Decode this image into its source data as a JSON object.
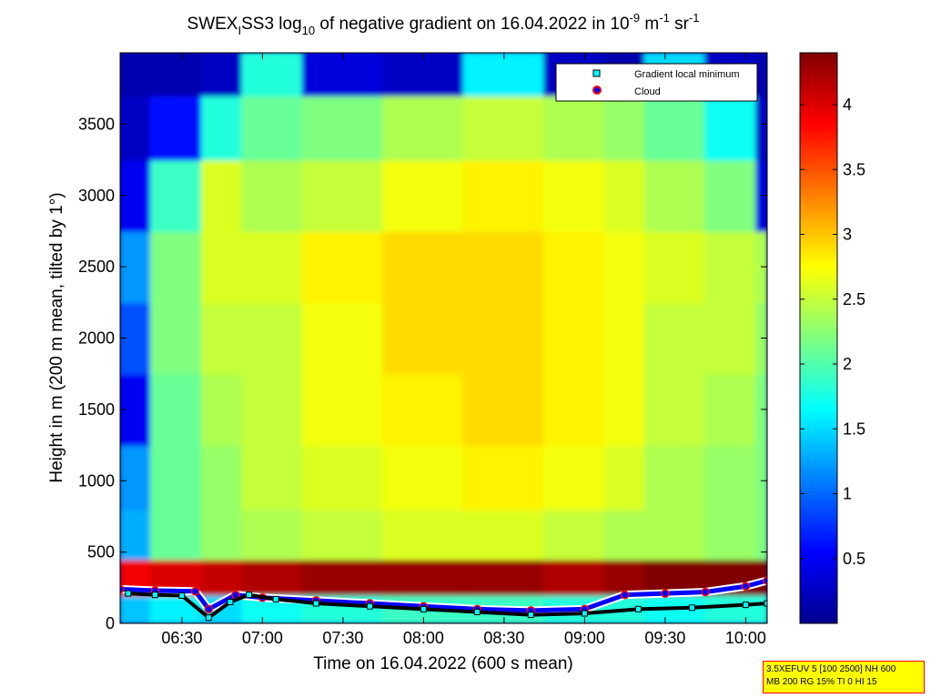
{
  "chart_data": {
    "type": "heatmap",
    "title": {
      "main": "SWEX",
      "sub": "I",
      "after_sub": "SS3 log",
      "log_base": "10",
      "rest": " of negative gradient on 16.04.2022 in 10",
      "exp1": "-9",
      "unit_m": " m",
      "exp2": "-1",
      "unit_sr": " sr",
      "exp3": "-1"
    },
    "xlabel": "Time on 16.04.2022 (600 s mean)",
    "ylabel": "Height in m (200 m mean, tilted by 1°)",
    "xlim": [
      "06:07",
      "10:08"
    ],
    "x_ticks": [
      "06:30",
      "07:00",
      "07:30",
      "08:00",
      "08:30",
      "09:00",
      "09:30",
      "10:00"
    ],
    "ylim": [
      0,
      4000
    ],
    "y_ticks": [
      0,
      500,
      1000,
      1500,
      2000,
      2500,
      3000,
      3500
    ],
    "colorbar": {
      "colormap": "jet",
      "range": [
        0,
        4.4
      ],
      "ticks": [
        0.5,
        1,
        1.5,
        2,
        2.5,
        3,
        3.5,
        4
      ]
    },
    "approx_field": {
      "description": "log10 values by time column (x) and height row (y), approximate",
      "x": [
        "06:07",
        "06:30",
        "06:45",
        "07:00",
        "07:30",
        "08:00",
        "08:30",
        "09:00",
        "09:15",
        "09:30",
        "10:00",
        "10:08"
      ],
      "y": [
        100,
        300,
        600,
        1000,
        1500,
        2000,
        2500,
        3000,
        3500,
        3900
      ],
      "z": [
        [
          1.4,
          1.6,
          1.5,
          1.7,
          1.8,
          1.9,
          1.9,
          1.8,
          1.8,
          1.7,
          1.8,
          1.8
        ],
        [
          3.9,
          4.0,
          4.1,
          4.2,
          4.3,
          4.3,
          4.3,
          4.2,
          4.3,
          4.4,
          4.4,
          4.4
        ],
        [
          1.3,
          2.1,
          2.3,
          2.4,
          2.5,
          2.6,
          2.6,
          2.5,
          2.4,
          2.4,
          2.3,
          2.2
        ],
        [
          1.2,
          2.1,
          2.3,
          2.5,
          2.6,
          2.7,
          2.8,
          2.7,
          2.6,
          2.4,
          2.3,
          2.2
        ],
        [
          0.5,
          2.1,
          2.4,
          2.5,
          2.7,
          2.8,
          2.9,
          2.8,
          2.7,
          2.5,
          2.4,
          2.2
        ],
        [
          0.9,
          2.2,
          2.5,
          2.5,
          2.7,
          2.9,
          2.9,
          2.8,
          2.7,
          2.5,
          2.5,
          2.3
        ],
        [
          1.2,
          2.2,
          2.6,
          2.6,
          2.8,
          2.9,
          2.9,
          2.8,
          2.7,
          2.6,
          2.5,
          2.4
        ],
        [
          0.5,
          1.9,
          2.6,
          2.4,
          2.5,
          2.7,
          2.8,
          2.7,
          2.6,
          2.4,
          2.2,
          0.4
        ],
        [
          0.3,
          0.6,
          1.8,
          2.1,
          2.2,
          2.4,
          2.5,
          2.4,
          2.3,
          2.1,
          1.7,
          0.3
        ],
        [
          0.2,
          0.2,
          0.3,
          1.8,
          0.4,
          0.3,
          1.6,
          0.3,
          0.2,
          1.5,
          0.3,
          0.2
        ]
      ]
    },
    "series": [
      {
        "name": "Gradient local minimum",
        "marker": "square",
        "color": "#00ffff",
        "x": [
          "06:10",
          "06:20",
          "06:30",
          "06:40",
          "06:48",
          "06:55",
          "07:05",
          "07:20",
          "07:40",
          "08:00",
          "08:20",
          "08:40",
          "09:00",
          "09:20",
          "09:40",
          "10:00",
          "10:08"
        ],
        "y": [
          210,
          200,
          195,
          40,
          150,
          200,
          170,
          140,
          120,
          100,
          80,
          60,
          70,
          100,
          110,
          130,
          140
        ]
      },
      {
        "name": "Cloud",
        "marker": "circle",
        "color": "#0000ff",
        "edge": "#ff0000",
        "x": [
          "06:07",
          "06:20",
          "06:35",
          "06:40",
          "06:50",
          "07:00",
          "07:20",
          "07:40",
          "08:00",
          "08:20",
          "08:40",
          "09:00",
          "09:15",
          "09:30",
          "09:45",
          "10:00",
          "10:08"
        ],
        "y": [
          240,
          230,
          225,
          100,
          200,
          180,
          160,
          140,
          120,
          100,
          90,
          100,
          200,
          210,
          220,
          260,
          300
        ]
      }
    ],
    "legend_position": "top-right"
  },
  "infobox": {
    "line1": "3.5XEFUV 5 [100 2500] NH 600",
    "line2": "MB 200 RG 15% TI 0 HI 15"
  },
  "colors": {
    "legend_minimum": "#00ffff",
    "legend_cloud_face": "#0000ff",
    "legend_cloud_edge": "#ff0000",
    "infobox_bg": "#ffff00",
    "infobox_border": "#ff0000"
  }
}
